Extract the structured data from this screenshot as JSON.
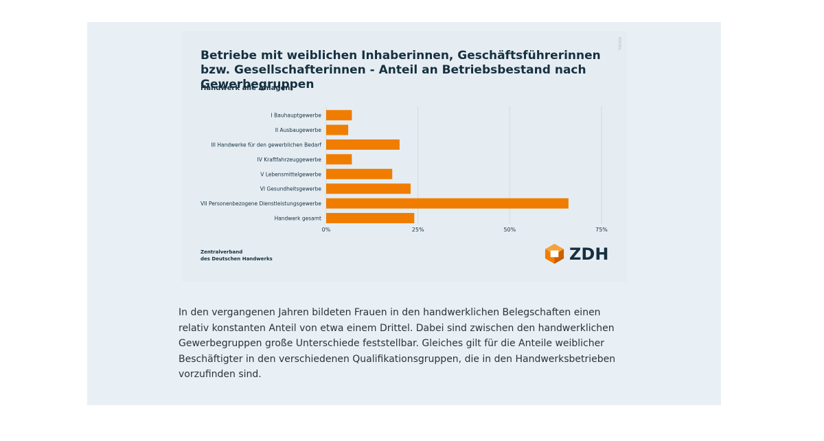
{
  "chart_data": {
    "type": "bar",
    "orientation": "horizontal",
    "title": "Betriebe mit weiblichen Inhaberinnen, Geschäftsführerinnen bzw. Gesellschafterinnen - Anteil an Betriebsbestand nach Gewerbegruppen",
    "subtitle": "Handwerk alle Anlagen",
    "categories": [
      "I Bauhauptgewerbe",
      "II Ausbaugewerbe",
      "III Handwerke für den gewerblichen Bedarf",
      "IV Kraftfahrzeuggewerbe",
      "V Lebensmittelgewerbe",
      "VI Gesundheitsgewerbe",
      "VII Personenbezogene Dienstleistungsgewerbe",
      "Handwerk gesamt"
    ],
    "values": [
      7,
      6,
      20,
      7,
      18,
      23,
      66,
      24
    ],
    "xlim": [
      0,
      75
    ],
    "xticks": [
      0,
      25,
      50,
      75
    ],
    "xtick_labels": [
      "0%",
      "25%",
      "50%",
      "75%"
    ],
    "grid": true,
    "bar_color": "#f07d00"
  },
  "source_mark": "fotolia",
  "footer": {
    "org_line1": "Zentralverband",
    "org_line2": "des Deutschen Handwerks",
    "logo_text": "ZDH"
  },
  "article": {
    "paragraph": "In den vergangenen Jahren bildeten Frauen in den handwerklichen Belegschaften einen relativ konstanten Anteil von etwa einem Drittel. Dabei sind zwischen den handwerklichen Gewerbegruppen große Unterschiede feststellbar. Gleiches gilt für die Anteile weiblicher Beschäftigter in den verschiedenen Qualifikationsgruppen, die in den Handwerksbetrieben vorzufinden sind."
  }
}
